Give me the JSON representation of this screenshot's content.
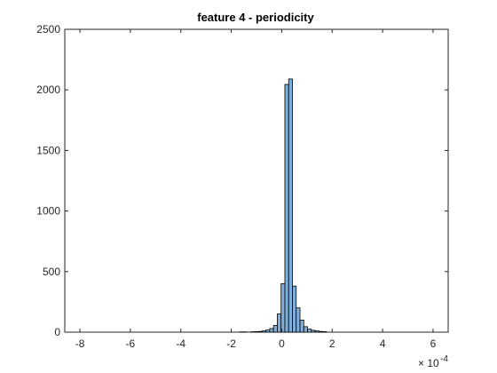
{
  "chart_data": {
    "type": "bar",
    "title": "feature 4 - periodicity",
    "xlabel": "",
    "ylabel": "",
    "x_exponent_label": "× 10",
    "x_exponent_power": "-4",
    "x_scale": 0.0001,
    "xlim": [
      -8.6,
      6.6
    ],
    "ylim": [
      0,
      2500
    ],
    "x_ticks": [
      -8,
      -6,
      -4,
      -2,
      0,
      2,
      4,
      6
    ],
    "y_ticks": [
      0,
      500,
      1000,
      1500,
      2000,
      2500
    ],
    "bar_color": "#7EAED9",
    "edge_color": "#000000",
    "grid": false,
    "legend": "none",
    "bin_width": 0.15,
    "bins": [
      {
        "x": -1.6,
        "value": 2
      },
      {
        "x": -1.45,
        "value": 2
      },
      {
        "x": -1.15,
        "value": 3
      },
      {
        "x": -1.0,
        "value": 4
      },
      {
        "x": -0.85,
        "value": 6
      },
      {
        "x": -0.7,
        "value": 10
      },
      {
        "x": -0.55,
        "value": 18
      },
      {
        "x": -0.4,
        "value": 30
      },
      {
        "x": -0.25,
        "value": 55
      },
      {
        "x": -0.1,
        "value": 150
      },
      {
        "x": 0.05,
        "value": 400
      },
      {
        "x": 0.2,
        "value": 2045
      },
      {
        "x": 0.35,
        "value": 2090
      },
      {
        "x": 0.5,
        "value": 380
      },
      {
        "x": 0.65,
        "value": 200
      },
      {
        "x": 0.8,
        "value": 100
      },
      {
        "x": 0.95,
        "value": 45
      },
      {
        "x": 1.1,
        "value": 25
      },
      {
        "x": 1.25,
        "value": 15
      },
      {
        "x": 1.4,
        "value": 10
      },
      {
        "x": 1.55,
        "value": 6
      },
      {
        "x": 1.7,
        "value": 4
      }
    ]
  }
}
